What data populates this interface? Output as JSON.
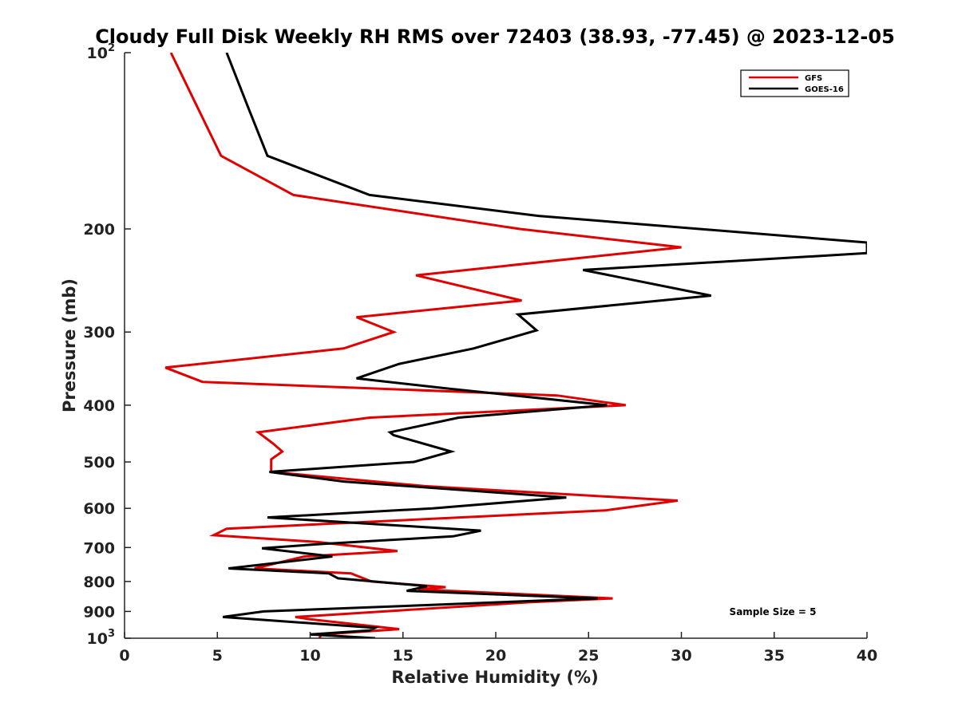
{
  "chart_data": {
    "type": "line",
    "title": "Cloudy Full Disk Weekly RH RMS over 72403 (38.93, -77.45) @ 2023-12-05",
    "xlabel": "Relative Humidity (%)",
    "ylabel": "Pressure (mb)",
    "xlim": [
      0,
      40
    ],
    "ylim": [
      100,
      1000
    ],
    "y_scale": "log",
    "y_reversed": true,
    "grid": false,
    "legend_position": "top-right",
    "x_ticks": [
      "0",
      "5",
      "10",
      "15",
      "20",
      "25",
      "30",
      "35",
      "40"
    ],
    "x_tick_values": [
      0,
      5,
      10,
      15,
      20,
      25,
      30,
      35,
      40
    ],
    "y_ticks": [
      {
        "value": 100,
        "base": "10",
        "exp": "2"
      },
      {
        "value": 200,
        "label": "200"
      },
      {
        "value": 300,
        "label": "300"
      },
      {
        "value": 400,
        "label": "400"
      },
      {
        "value": 500,
        "label": "500"
      },
      {
        "value": 600,
        "label": "600"
      },
      {
        "value": 700,
        "label": "700"
      },
      {
        "value": 800,
        "label": "800"
      },
      {
        "value": 900,
        "label": "900"
      },
      {
        "value": 1000,
        "base": "10",
        "exp": "3"
      }
    ],
    "series": [
      {
        "name": "GFS",
        "color": "#e00000",
        "points": [
          [
            2.5,
            100
          ],
          [
            5.2,
            150
          ],
          [
            9.1,
            175
          ],
          [
            21.3,
            200
          ],
          [
            30.0,
            215
          ],
          [
            15.7,
            240
          ],
          [
            21.4,
            265
          ],
          [
            12.5,
            283
          ],
          [
            14.5,
            300
          ],
          [
            11.8,
            320
          ],
          [
            2.2,
            345
          ],
          [
            4.2,
            365
          ],
          [
            23.3,
            385
          ],
          [
            27.0,
            400
          ],
          [
            13.2,
            420
          ],
          [
            7.2,
            445
          ],
          [
            8.0,
            465
          ],
          [
            8.5,
            480
          ],
          [
            7.9,
            495
          ],
          [
            7.9,
            520
          ],
          [
            16.2,
            550
          ],
          [
            29.8,
            582
          ],
          [
            25.9,
            605
          ],
          [
            5.5,
            650
          ],
          [
            4.8,
            667
          ],
          [
            10.4,
            685
          ],
          [
            14.7,
            710
          ],
          [
            9.7,
            725
          ],
          [
            7.0,
            760
          ],
          [
            12.2,
            775
          ],
          [
            13.3,
            800
          ],
          [
            17.3,
            818
          ],
          [
            15.8,
            825
          ],
          [
            26.3,
            855
          ],
          [
            21.8,
            868
          ],
          [
            9.2,
            920
          ],
          [
            10.0,
            928
          ],
          [
            14.8,
            965
          ],
          [
            10.6,
            985
          ],
          [
            10.5,
            1000
          ]
        ]
      },
      {
        "name": "GOES-16",
        "color": "#000000",
        "points": [
          [
            5.5,
            100
          ],
          [
            6.7,
            125
          ],
          [
            7.7,
            150
          ],
          [
            13.2,
            175
          ],
          [
            22.3,
            190
          ],
          [
            40.0,
            211
          ],
          [
            40.0,
            220
          ],
          [
            24.7,
            235
          ],
          [
            31.6,
            260
          ],
          [
            21.2,
            280
          ],
          [
            22.2,
            298
          ],
          [
            18.8,
            320
          ],
          [
            14.8,
            340
          ],
          [
            12.5,
            360
          ],
          [
            17.5,
            375
          ],
          [
            26.0,
            400
          ],
          [
            18.0,
            420
          ],
          [
            14.3,
            445
          ],
          [
            14.5,
            450
          ],
          [
            17.6,
            480
          ],
          [
            15.6,
            500
          ],
          [
            7.8,
            520
          ],
          [
            11.8,
            540
          ],
          [
            23.8,
            575
          ],
          [
            16.6,
            600
          ],
          [
            7.7,
            622
          ],
          [
            19.2,
            655
          ],
          [
            17.7,
            670
          ],
          [
            10.7,
            690
          ],
          [
            7.4,
            702
          ],
          [
            11.2,
            725
          ],
          [
            5.6,
            760
          ],
          [
            11.0,
            775
          ],
          [
            11.5,
            790
          ],
          [
            16.3,
            815
          ],
          [
            15.2,
            830
          ],
          [
            25.5,
            855
          ],
          [
            7.5,
            900
          ],
          [
            5.3,
            920
          ],
          [
            13.5,
            960
          ],
          [
            13.2,
            970
          ],
          [
            10.0,
            985
          ],
          [
            13.5,
            1000
          ]
        ]
      }
    ],
    "legend": [
      {
        "name": "GFS",
        "color": "#e00000"
      },
      {
        "name": "GOES-16",
        "color": "#000000"
      }
    ],
    "annotation": "Sample Size = 5"
  }
}
